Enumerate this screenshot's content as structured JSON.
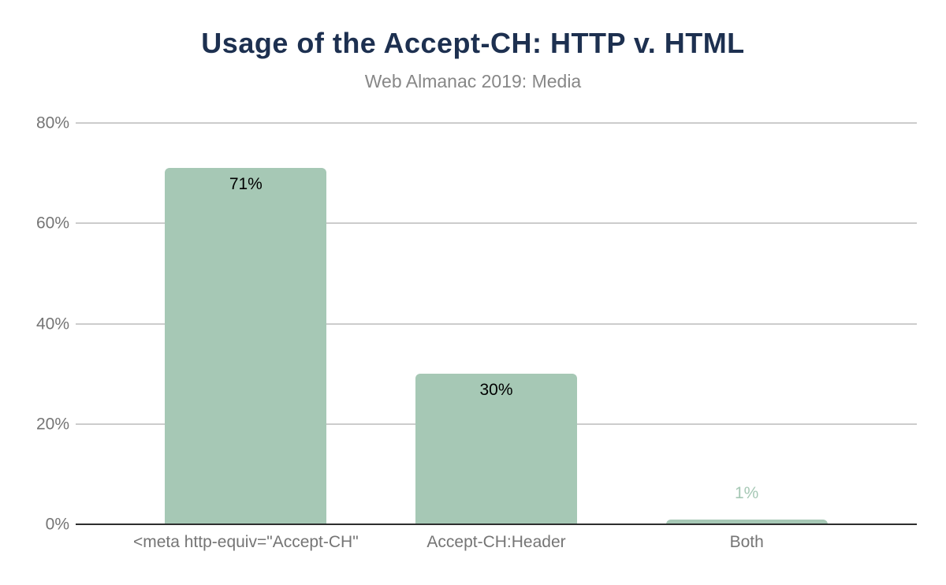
{
  "chart_data": {
    "type": "bar",
    "title": "Usage of the Accept-CH: HTTP v. HTML",
    "subtitle": "Web Almanac 2019: Media",
    "categories": [
      "<meta http-equiv=\"Accept-CH\"",
      "Accept-CH:Header",
      "Both"
    ],
    "values": [
      71,
      30,
      1
    ],
    "value_labels": [
      "71%",
      "30%",
      "1%"
    ],
    "ylim": [
      0,
      80
    ],
    "yticks": [
      0,
      20,
      40,
      60,
      80
    ],
    "ytick_labels": [
      "0%",
      "20%",
      "40%",
      "60%",
      "80%"
    ],
    "grid": true,
    "legend": "none",
    "xlabel": "",
    "ylabel": "",
    "inside_label_threshold": 5
  },
  "colors": {
    "title": "#1d3050",
    "subtitle": "#878787",
    "axis_text": "#757575",
    "gridline": "#cccccc",
    "baseline": "#2e2e2e",
    "bar": "#a6c8b5",
    "value_label": "#000000"
  }
}
